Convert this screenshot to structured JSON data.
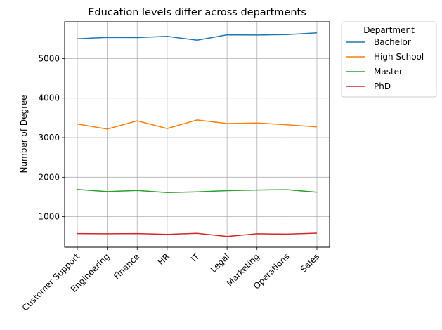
{
  "chart_data": {
    "type": "line",
    "title": "Education levels differ across departments",
    "xlabel": "",
    "ylabel": "Number of Degree",
    "categories": [
      "Customer Support",
      "Engineering",
      "Finance",
      "HR",
      "IT",
      "Legal",
      "Marketing",
      "Operations",
      "Sales"
    ],
    "ylim": [
      230,
      5930
    ],
    "yticks": [
      1000,
      2000,
      3000,
      4000,
      5000
    ],
    "grid": true,
    "legend": {
      "title": "Department",
      "placement": "outside-top-right"
    },
    "series": [
      {
        "name": "Bachelor",
        "color": "#1f77b4",
        "values": [
          5500,
          5535,
          5530,
          5560,
          5465,
          5600,
          5595,
          5605,
          5650
        ]
      },
      {
        "name": "High School",
        "color": "#ff7f0e",
        "values": [
          3345,
          3215,
          3425,
          3230,
          3445,
          3355,
          3370,
          3325,
          3270
        ]
      },
      {
        "name": "Master",
        "color": "#2ca02c",
        "values": [
          1690,
          1635,
          1665,
          1610,
          1630,
          1660,
          1675,
          1685,
          1620
        ]
      },
      {
        "name": "PhD",
        "color": "#d62728",
        "values": [
          575,
          570,
          575,
          555,
          580,
          500,
          570,
          560,
          585
        ]
      }
    ]
  }
}
